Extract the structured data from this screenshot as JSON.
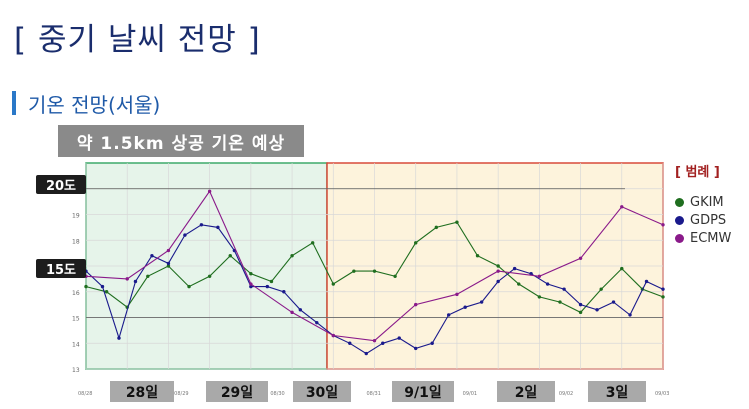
{
  "header": {
    "title": "[ 중기 날씨 전망 ]",
    "section_title": "기온 전망(서울)",
    "banner": "약 1.5km 상공 기온 예상"
  },
  "tags": {
    "t20": "20도",
    "t15": "15도"
  },
  "legend": {
    "title": "[ 범례 ]",
    "items": [
      {
        "label": "GKIM",
        "color": "#1f6e1f"
      },
      {
        "label": "GDPS",
        "color": "#1a1a8c"
      },
      {
        "label": "ECMW",
        "color": "#8a1a8a"
      }
    ]
  },
  "day_tabs": [
    "28일",
    "29일",
    "30일",
    "9/1일",
    "2일",
    "3일"
  ],
  "colors": {
    "green_zone": "#e6f4ea",
    "green_border": "#3daa6a",
    "yellow_zone": "#fdf3dc",
    "yellow_border": "#d84a3a"
  },
  "chart_data": {
    "type": "line",
    "ylim": [
      13,
      21
    ],
    "xlim": [
      0,
      7
    ],
    "yticks": [
      13,
      14,
      15,
      16,
      17,
      18,
      19,
      20
    ],
    "xtick_labels": [
      "08/28",
      "08/29",
      "08/30",
      "08/31",
      "09/01",
      "09/02",
      "09/03"
    ],
    "series": [
      {
        "name": "GKIM",
        "color": "#1f6e1f",
        "x": [
          0,
          0.25,
          0.5,
          0.75,
          1.0,
          1.25,
          1.5,
          1.75,
          2.0,
          2.25,
          2.5,
          2.75,
          3.0,
          3.25,
          3.5,
          3.75,
          4.0,
          4.25,
          4.5,
          4.75,
          5.0,
          5.25,
          5.5,
          5.75,
          6.0,
          6.25,
          6.5,
          6.75,
          7.0
        ],
        "y": [
          16.2,
          16.0,
          15.4,
          16.6,
          17.0,
          16.2,
          16.6,
          17.4,
          16.7,
          16.4,
          17.4,
          17.9,
          16.3,
          16.8,
          16.8,
          16.6,
          17.9,
          18.5,
          18.7,
          17.4,
          17.0,
          16.3,
          15.8,
          15.6,
          15.2,
          16.1,
          16.9,
          16.1,
          15.8
        ]
      },
      {
        "name": "GDPS",
        "color": "#1a1a8c",
        "x": [
          0,
          0.2,
          0.4,
          0.6,
          0.8,
          1.0,
          1.2,
          1.4,
          1.6,
          1.8,
          2.0,
          2.2,
          2.4,
          2.6,
          2.8,
          3.0,
          3.2,
          3.4,
          3.6,
          3.8,
          4.0,
          4.2,
          4.4,
          4.6,
          4.8,
          5.0,
          5.2,
          5.4,
          5.6,
          5.8,
          6.0,
          6.2,
          6.4,
          6.6,
          6.8,
          7.0
        ],
        "y": [
          16.8,
          16.2,
          14.2,
          16.4,
          17.4,
          17.1,
          18.2,
          18.6,
          18.5,
          17.6,
          16.2,
          16.2,
          16.0,
          15.3,
          14.8,
          14.3,
          14.0,
          13.6,
          14.0,
          14.2,
          13.8,
          14.0,
          15.1,
          15.4,
          15.6,
          16.4,
          16.9,
          16.7,
          16.3,
          16.1,
          15.5,
          15.3,
          15.6,
          15.1,
          16.4,
          16.1
        ]
      },
      {
        "name": "ECMW",
        "color": "#8a1a8a",
        "x": [
          0,
          0.5,
          1.0,
          1.5,
          2.0,
          2.5,
          3.0,
          3.5,
          4.0,
          4.5,
          5.0,
          5.5,
          6.0,
          6.5,
          7.0
        ],
        "y": [
          16.6,
          16.5,
          17.6,
          19.9,
          16.3,
          15.2,
          14.3,
          14.1,
          15.5,
          15.9,
          16.8,
          16.6,
          17.3,
          19.3,
          18.6
        ]
      }
    ]
  }
}
